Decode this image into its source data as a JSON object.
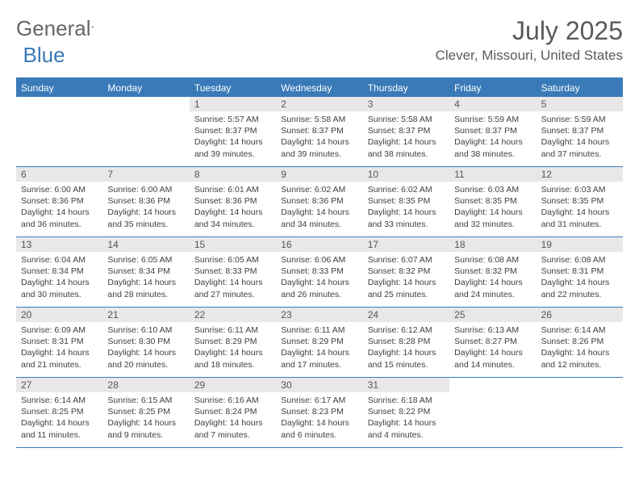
{
  "brand": {
    "part1": "General",
    "part2": "Blue"
  },
  "title": "July 2025",
  "location": "Clever, Missouri, United States",
  "dayNames": [
    "Sunday",
    "Monday",
    "Tuesday",
    "Wednesday",
    "Thursday",
    "Friday",
    "Saturday"
  ],
  "colors": {
    "accent": "#3a7ab8",
    "dayNumBg": "#e8e8e8",
    "text": "#404040",
    "titleText": "#5a5a5a"
  },
  "layout": {
    "startOffset": 2,
    "daysInMonth": 31
  },
  "days": {
    "1": {
      "sunrise": "Sunrise: 5:57 AM",
      "sunset": "Sunset: 8:37 PM",
      "daylight": "Daylight: 14 hours and 39 minutes."
    },
    "2": {
      "sunrise": "Sunrise: 5:58 AM",
      "sunset": "Sunset: 8:37 PM",
      "daylight": "Daylight: 14 hours and 39 minutes."
    },
    "3": {
      "sunrise": "Sunrise: 5:58 AM",
      "sunset": "Sunset: 8:37 PM",
      "daylight": "Daylight: 14 hours and 38 minutes."
    },
    "4": {
      "sunrise": "Sunrise: 5:59 AM",
      "sunset": "Sunset: 8:37 PM",
      "daylight": "Daylight: 14 hours and 38 minutes."
    },
    "5": {
      "sunrise": "Sunrise: 5:59 AM",
      "sunset": "Sunset: 8:37 PM",
      "daylight": "Daylight: 14 hours and 37 minutes."
    },
    "6": {
      "sunrise": "Sunrise: 6:00 AM",
      "sunset": "Sunset: 8:36 PM",
      "daylight": "Daylight: 14 hours and 36 minutes."
    },
    "7": {
      "sunrise": "Sunrise: 6:00 AM",
      "sunset": "Sunset: 8:36 PM",
      "daylight": "Daylight: 14 hours and 35 minutes."
    },
    "8": {
      "sunrise": "Sunrise: 6:01 AM",
      "sunset": "Sunset: 8:36 PM",
      "daylight": "Daylight: 14 hours and 34 minutes."
    },
    "9": {
      "sunrise": "Sunrise: 6:02 AM",
      "sunset": "Sunset: 8:36 PM",
      "daylight": "Daylight: 14 hours and 34 minutes."
    },
    "10": {
      "sunrise": "Sunrise: 6:02 AM",
      "sunset": "Sunset: 8:35 PM",
      "daylight": "Daylight: 14 hours and 33 minutes."
    },
    "11": {
      "sunrise": "Sunrise: 6:03 AM",
      "sunset": "Sunset: 8:35 PM",
      "daylight": "Daylight: 14 hours and 32 minutes."
    },
    "12": {
      "sunrise": "Sunrise: 6:03 AM",
      "sunset": "Sunset: 8:35 PM",
      "daylight": "Daylight: 14 hours and 31 minutes."
    },
    "13": {
      "sunrise": "Sunrise: 6:04 AM",
      "sunset": "Sunset: 8:34 PM",
      "daylight": "Daylight: 14 hours and 30 minutes."
    },
    "14": {
      "sunrise": "Sunrise: 6:05 AM",
      "sunset": "Sunset: 8:34 PM",
      "daylight": "Daylight: 14 hours and 28 minutes."
    },
    "15": {
      "sunrise": "Sunrise: 6:05 AM",
      "sunset": "Sunset: 8:33 PM",
      "daylight": "Daylight: 14 hours and 27 minutes."
    },
    "16": {
      "sunrise": "Sunrise: 6:06 AM",
      "sunset": "Sunset: 8:33 PM",
      "daylight": "Daylight: 14 hours and 26 minutes."
    },
    "17": {
      "sunrise": "Sunrise: 6:07 AM",
      "sunset": "Sunset: 8:32 PM",
      "daylight": "Daylight: 14 hours and 25 minutes."
    },
    "18": {
      "sunrise": "Sunrise: 6:08 AM",
      "sunset": "Sunset: 8:32 PM",
      "daylight": "Daylight: 14 hours and 24 minutes."
    },
    "19": {
      "sunrise": "Sunrise: 6:08 AM",
      "sunset": "Sunset: 8:31 PM",
      "daylight": "Daylight: 14 hours and 22 minutes."
    },
    "20": {
      "sunrise": "Sunrise: 6:09 AM",
      "sunset": "Sunset: 8:31 PM",
      "daylight": "Daylight: 14 hours and 21 minutes."
    },
    "21": {
      "sunrise": "Sunrise: 6:10 AM",
      "sunset": "Sunset: 8:30 PM",
      "daylight": "Daylight: 14 hours and 20 minutes."
    },
    "22": {
      "sunrise": "Sunrise: 6:11 AM",
      "sunset": "Sunset: 8:29 PM",
      "daylight": "Daylight: 14 hours and 18 minutes."
    },
    "23": {
      "sunrise": "Sunrise: 6:11 AM",
      "sunset": "Sunset: 8:29 PM",
      "daylight": "Daylight: 14 hours and 17 minutes."
    },
    "24": {
      "sunrise": "Sunrise: 6:12 AM",
      "sunset": "Sunset: 8:28 PM",
      "daylight": "Daylight: 14 hours and 15 minutes."
    },
    "25": {
      "sunrise": "Sunrise: 6:13 AM",
      "sunset": "Sunset: 8:27 PM",
      "daylight": "Daylight: 14 hours and 14 minutes."
    },
    "26": {
      "sunrise": "Sunrise: 6:14 AM",
      "sunset": "Sunset: 8:26 PM",
      "daylight": "Daylight: 14 hours and 12 minutes."
    },
    "27": {
      "sunrise": "Sunrise: 6:14 AM",
      "sunset": "Sunset: 8:25 PM",
      "daylight": "Daylight: 14 hours and 11 minutes."
    },
    "28": {
      "sunrise": "Sunrise: 6:15 AM",
      "sunset": "Sunset: 8:25 PM",
      "daylight": "Daylight: 14 hours and 9 minutes."
    },
    "29": {
      "sunrise": "Sunrise: 6:16 AM",
      "sunset": "Sunset: 8:24 PM",
      "daylight": "Daylight: 14 hours and 7 minutes."
    },
    "30": {
      "sunrise": "Sunrise: 6:17 AM",
      "sunset": "Sunset: 8:23 PM",
      "daylight": "Daylight: 14 hours and 6 minutes."
    },
    "31": {
      "sunrise": "Sunrise: 6:18 AM",
      "sunset": "Sunset: 8:22 PM",
      "daylight": "Daylight: 14 hours and 4 minutes."
    }
  }
}
